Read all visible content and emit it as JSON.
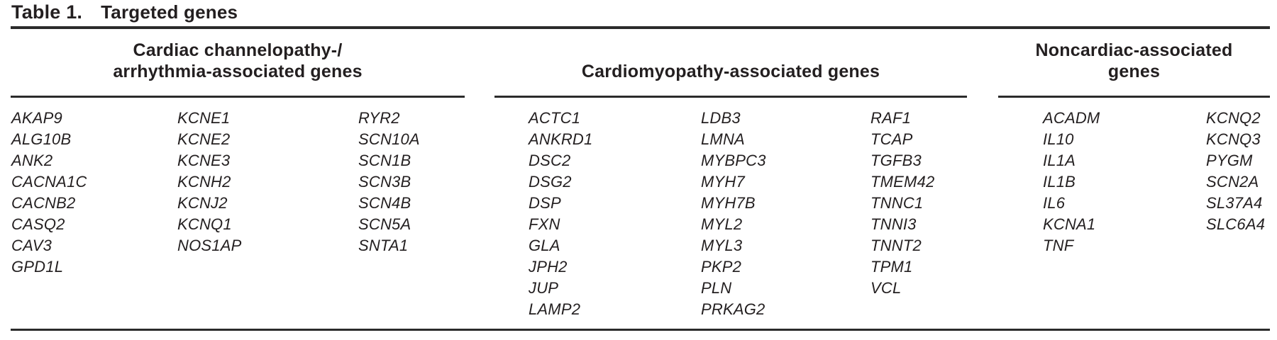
{
  "table": {
    "label": "Table 1.",
    "title": "Targeted genes",
    "groups": [
      {
        "header_lines": [
          "Cardiac channelopathy-/",
          "arrhythmia-associated genes"
        ],
        "columns": [
          [
            "AKAP9",
            "ALG10B",
            "ANK2",
            "CACNA1C",
            "CACNB2",
            "CASQ2",
            "CAV3",
            "GPD1L"
          ],
          [
            "KCNE1",
            "KCNE2",
            "KCNE3",
            "KCNH2",
            "KCNJ2",
            "KCNQ1",
            "NOS1AP"
          ],
          [
            "RYR2",
            "SCN10A",
            "SCN1B",
            "SCN3B",
            "SCN4B",
            "SCN5A",
            "SNTA1"
          ]
        ]
      },
      {
        "header_lines": [
          "Cardiomyopathy-associated genes"
        ],
        "columns": [
          [
            "ACTC1",
            "ANKRD1",
            "DSC2",
            "DSG2",
            "DSP",
            "FXN",
            "GLA",
            "JPH2",
            "JUP",
            "LAMP2"
          ],
          [
            "LDB3",
            "LMNA",
            "MYBPC3",
            "MYH7",
            "MYH7B",
            "MYL2",
            "MYL3",
            "PKP2",
            "PLN",
            "PRKAG2"
          ],
          [
            "RAF1",
            "TCAP",
            "TGFB3",
            "TMEM42",
            "TNNC1",
            "TNNI3",
            "TNNT2",
            "TPM1",
            "VCL"
          ]
        ]
      },
      {
        "header_lines": [
          "Noncardiac-associated",
          "genes"
        ],
        "columns": [
          [
            "ACADM",
            "IL10",
            "IL1A",
            "IL1B",
            "IL6",
            "KCNA1",
            "TNF"
          ],
          [
            "KCNQ2",
            "KCNQ3",
            "PYGM",
            "SCN2A",
            "SL37A4",
            "SLC6A4"
          ]
        ]
      }
    ]
  },
  "colors": {
    "text": "#231f20",
    "rule": "#2b2b2b",
    "background": "#ffffff"
  }
}
